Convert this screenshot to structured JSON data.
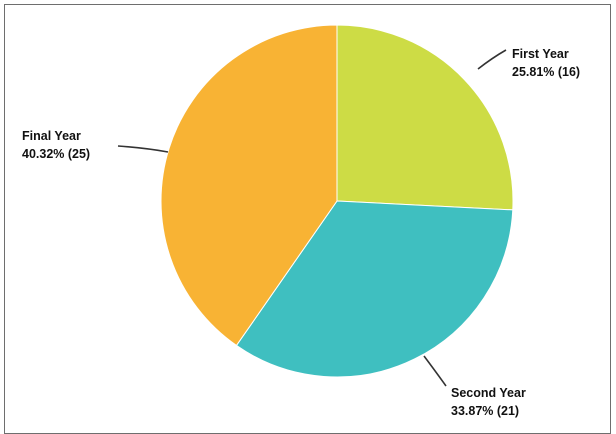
{
  "chart_data": {
    "type": "pie",
    "title": "",
    "slices": [
      {
        "name": "First Year",
        "label": "25.81% (16)",
        "percent": 25.81,
        "value": 16,
        "color": "#cddc45"
      },
      {
        "name": "Second Year",
        "label": "33.87% (21)",
        "percent": 33.87,
        "value": 21,
        "color": "#3fbfc0"
      },
      {
        "name": "Final Year",
        "label": "40.32% (25)",
        "percent": 40.32,
        "value": 25,
        "color": "#f8b334"
      }
    ],
    "start": "top (12 o'clock), clockwise",
    "legend": "none (direct labels with leader lines)"
  }
}
